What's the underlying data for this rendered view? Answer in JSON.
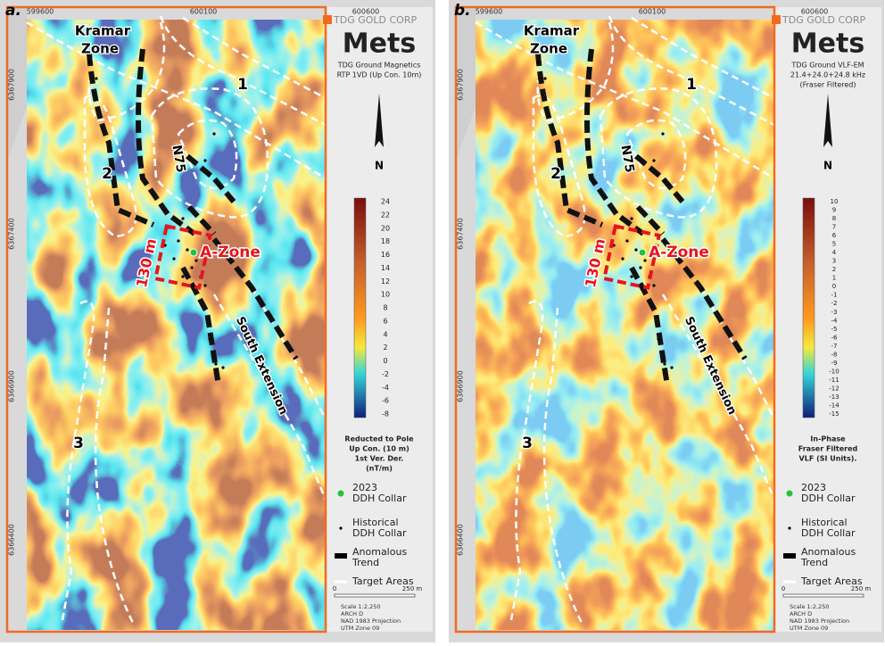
{
  "panels": [
    {
      "letter": "a.",
      "eastings": [
        "599600",
        "600100",
        "600600"
      ],
      "northings": [
        "6367900",
        "6367400",
        "6366900",
        "6366400"
      ],
      "logo": "TDG GOLD CORP",
      "title": "Mets",
      "subtitle": [
        "TDG Ground Magnetics",
        "RTP 1VD (Up Con. 10m)"
      ],
      "colorbar_ticks": [
        24,
        22,
        20,
        18,
        16,
        14,
        12,
        10,
        8,
        6,
        4,
        2,
        0,
        -2,
        -4,
        -6,
        -8
      ],
      "colorbar_caption": [
        "Reducted to Pole",
        "Up Con. (10 m)",
        "1st Ver. Der.",
        "(nT/m)"
      ],
      "legend": [
        [
          "2023",
          "DDH Collar"
        ],
        [
          "Historical",
          "DDH Collar"
        ],
        [
          "Anomalous",
          "Trend"
        ],
        [
          "Target Areas"
        ]
      ],
      "scale_labels": [
        "0",
        "250 m"
      ],
      "scale_text": [
        "Scale 1:2,250",
        "ARCH D",
        "NAD 1983 Projection",
        "UTM Zone 09"
      ],
      "map_labels": [
        "Kramar",
        "Zone",
        "1",
        "2",
        "N75",
        "A-Zone",
        "130 m",
        "South Extension",
        "3"
      ]
    },
    {
      "letter": "b.",
      "eastings": [
        "599600",
        "600100",
        "600600"
      ],
      "northings": [
        "6367900",
        "6367400",
        "6366900",
        "6366400"
      ],
      "logo": "TDG GOLD CORP",
      "title": "Mets",
      "subtitle": [
        "TDG Ground VLF-EM",
        "21.4+24.0+24.8 kHz",
        "(Fraser Filtered)"
      ],
      "colorbar_ticks": [
        10,
        9,
        8,
        7,
        6,
        5,
        4,
        3,
        2,
        1,
        0,
        -1,
        -2,
        -3,
        -4,
        -5,
        -6,
        -7,
        -8,
        -9,
        -10,
        -11,
        -12,
        -13,
        -14,
        -15
      ],
      "colorbar_caption": [
        "In-Phase",
        "Fraser Filtered",
        "VLF (SI Units)."
      ],
      "legend": [
        [
          "2023",
          "DDH Collar"
        ],
        [
          "Historical",
          "DDH Collar"
        ],
        [
          "Anomalous",
          "Trend"
        ],
        [
          "Target Areas"
        ]
      ],
      "scale_labels": [
        "0",
        "250 m"
      ],
      "scale_text": [
        "Scale 1:2,250",
        "ARCH D",
        "NAD 1983 Projection",
        "UTM Zone 09"
      ],
      "map_labels": [
        "Kramar",
        "Zone",
        "1",
        "2",
        "N75",
        "A-Zone",
        "130 m",
        "South Extension",
        "3"
      ]
    }
  ]
}
